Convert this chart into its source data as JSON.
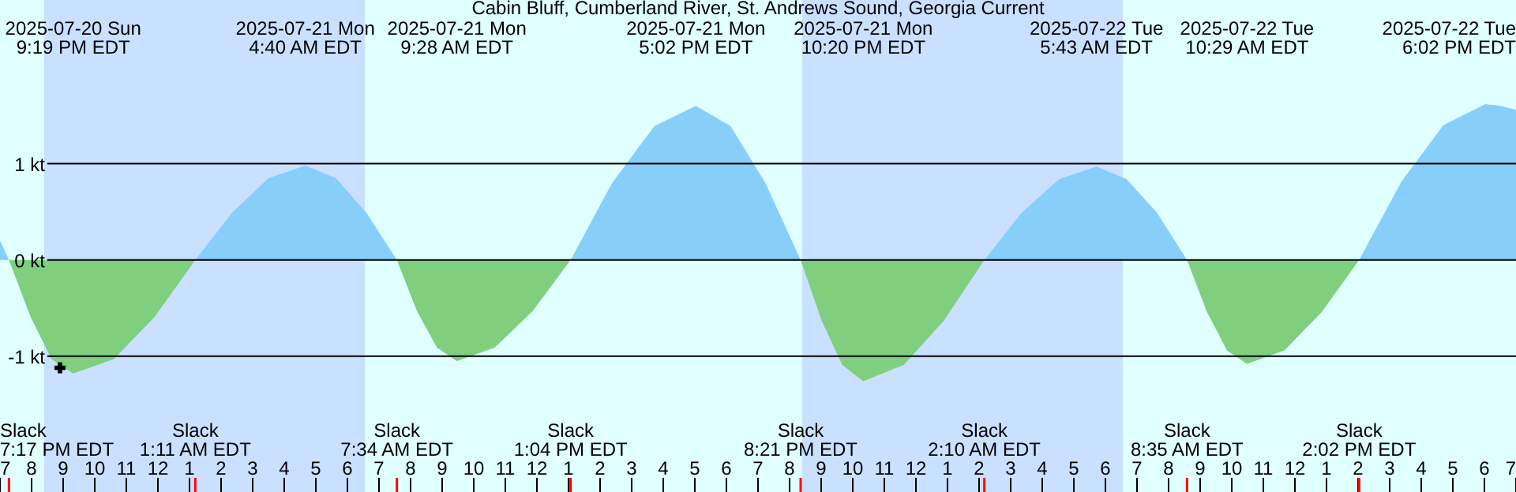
{
  "chart_data": {
    "type": "area",
    "title": "Cabin Bluff, Cumberland River, St. Andrews Sound, Georgia Current",
    "xlim": [
      "2025-07-20T19:00",
      "2025-07-22T19:00"
    ],
    "xticks": [
      {
        "value": "2025-07-20T19:00",
        "label": "7"
      },
      {
        "value": "2025-07-20T20:00",
        "label": "8"
      },
      {
        "value": "2025-07-20T21:00",
        "label": "9"
      },
      {
        "value": "2025-07-20T22:00",
        "label": "10"
      },
      {
        "value": "2025-07-20T23:00",
        "label": "11"
      },
      {
        "value": "2025-07-21T00:00",
        "label": "12"
      },
      {
        "value": "2025-07-21T01:00",
        "label": "1"
      },
      {
        "value": "2025-07-21T02:00",
        "label": "2"
      },
      {
        "value": "2025-07-21T03:00",
        "label": "3"
      },
      {
        "value": "2025-07-21T04:00",
        "label": "4"
      },
      {
        "value": "2025-07-21T05:00",
        "label": "5"
      },
      {
        "value": "2025-07-21T06:00",
        "label": "6"
      },
      {
        "value": "2025-07-21T07:00",
        "label": "7"
      },
      {
        "value": "2025-07-21T08:00",
        "label": "8"
      },
      {
        "value": "2025-07-21T09:00",
        "label": "9"
      },
      {
        "value": "2025-07-21T10:00",
        "label": "10"
      },
      {
        "value": "2025-07-21T11:00",
        "label": "11"
      },
      {
        "value": "2025-07-21T12:00",
        "label": "12"
      },
      {
        "value": "2025-07-21T13:00",
        "label": "1"
      },
      {
        "value": "2025-07-21T14:00",
        "label": "2"
      },
      {
        "value": "2025-07-21T15:00",
        "label": "3"
      },
      {
        "value": "2025-07-21T16:00",
        "label": "4"
      },
      {
        "value": "2025-07-21T17:00",
        "label": "5"
      },
      {
        "value": "2025-07-21T18:00",
        "label": "6"
      },
      {
        "value": "2025-07-21T19:00",
        "label": "7"
      },
      {
        "value": "2025-07-21T20:00",
        "label": "8"
      },
      {
        "value": "2025-07-21T21:00",
        "label": "9"
      },
      {
        "value": "2025-07-21T22:00",
        "label": "10"
      },
      {
        "value": "2025-07-21T23:00",
        "label": "11"
      },
      {
        "value": "2025-07-22T00:00",
        "label": "12"
      },
      {
        "value": "2025-07-22T01:00",
        "label": "1"
      },
      {
        "value": "2025-07-22T02:00",
        "label": "2"
      },
      {
        "value": "2025-07-22T03:00",
        "label": "3"
      },
      {
        "value": "2025-07-22T04:00",
        "label": "4"
      },
      {
        "value": "2025-07-22T05:00",
        "label": "5"
      },
      {
        "value": "2025-07-22T06:00",
        "label": "6"
      },
      {
        "value": "2025-07-22T07:00",
        "label": "7"
      },
      {
        "value": "2025-07-22T08:00",
        "label": "8"
      },
      {
        "value": "2025-07-22T09:00",
        "label": "9"
      },
      {
        "value": "2025-07-22T10:00",
        "label": "10"
      },
      {
        "value": "2025-07-22T11:00",
        "label": "11"
      },
      {
        "value": "2025-07-22T12:00",
        "label": "12"
      },
      {
        "value": "2025-07-22T13:00",
        "label": "1"
      },
      {
        "value": "2025-07-22T14:00",
        "label": "2"
      },
      {
        "value": "2025-07-22T15:00",
        "label": "3"
      },
      {
        "value": "2025-07-22T16:00",
        "label": "4"
      },
      {
        "value": "2025-07-22T17:00",
        "label": "5"
      },
      {
        "value": "2025-07-22T18:00",
        "label": "6"
      },
      {
        "value": "2025-07-22T19:00",
        "label": "7"
      }
    ],
    "ylim": [
      -2.41,
      2.7
    ],
    "yticks": [
      {
        "value": -1,
        "label": "-1 kt"
      },
      {
        "value": 0,
        "label": "0 kt"
      },
      {
        "value": 1,
        "label": "1 kt"
      }
    ],
    "grid": "y",
    "bands": [
      {
        "axis": "x",
        "from": "2025-07-20T20:24",
        "to": "2025-07-21T06:33",
        "color": "#cae0ff"
      },
      {
        "axis": "x",
        "from": "2025-07-21T20:24",
        "to": "2025-07-22T06:33",
        "color": "#cae0ff"
      }
    ],
    "series": [
      {
        "color": "#87cefa",
        "x": [
          "2025-07-20T19:00",
          "2025-07-20T19:17"
        ],
        "values": [
          0.2,
          0
        ]
      },
      {
        "color": "#7fcf7f",
        "x": [
          "2025-07-20T19:17",
          "2025-07-20T19:58",
          "2025-07-20T20:38",
          "2025-07-20T21:19",
          "2025-07-20T22:36",
          "2025-07-20T23:54",
          "2025-07-21T01:11"
        ],
        "values": [
          0,
          -0.59,
          -1.03,
          -1.18,
          -1.03,
          -0.59,
          0
        ]
      },
      {
        "color": "#87cefa",
        "x": [
          "2025-07-21T01:11",
          "2025-07-21T02:21",
          "2025-07-21T03:30",
          "2025-07-21T04:40",
          "2025-07-21T05:38",
          "2025-07-21T06:36",
          "2025-07-21T07:34"
        ],
        "values": [
          0,
          0.49,
          0.85,
          0.98,
          0.85,
          0.49,
          0
        ]
      },
      {
        "color": "#7fcf7f",
        "x": [
          "2025-07-21T07:34",
          "2025-07-21T08:12",
          "2025-07-21T08:50",
          "2025-07-21T09:28",
          "2025-07-21T10:40",
          "2025-07-21T11:52",
          "2025-07-21T13:04"
        ],
        "values": [
          0,
          -0.53,
          -0.91,
          -1.05,
          -0.91,
          -0.53,
          0
        ]
      },
      {
        "color": "#87cefa",
        "x": [
          "2025-07-21T13:04",
          "2025-07-21T14:23",
          "2025-07-21T15:43",
          "2025-07-21T17:02",
          "2025-07-21T18:08",
          "2025-07-21T19:14",
          "2025-07-21T20:21"
        ],
        "values": [
          0,
          0.8,
          1.39,
          1.6,
          1.39,
          0.8,
          0
        ]
      },
      {
        "color": "#7fcf7f",
        "x": [
          "2025-07-21T20:21",
          "2025-07-21T21:01",
          "2025-07-21T21:40",
          "2025-07-21T22:20",
          "2025-07-21T23:37",
          "2025-07-22T00:53",
          "2025-07-22T02:10"
        ],
        "values": [
          0,
          -0.63,
          -1.09,
          -1.26,
          -1.09,
          -0.63,
          0
        ]
      },
      {
        "color": "#87cefa",
        "x": [
          "2025-07-22T02:10",
          "2025-07-22T03:21",
          "2025-07-22T04:32",
          "2025-07-22T05:43",
          "2025-07-22T06:40",
          "2025-07-22T07:38",
          "2025-07-22T08:35"
        ],
        "values": [
          0,
          0.49,
          0.84,
          0.97,
          0.84,
          0.49,
          0
        ]
      },
      {
        "color": "#7fcf7f",
        "x": [
          "2025-07-22T08:35",
          "2025-07-22T09:13",
          "2025-07-22T09:51",
          "2025-07-22T10:29",
          "2025-07-22T11:40",
          "2025-07-22T12:51",
          "2025-07-22T14:02"
        ],
        "values": [
          0,
          -0.54,
          -0.94,
          -1.08,
          -0.94,
          -0.54,
          0
        ]
      },
      {
        "color": "#87cefa",
        "x": [
          "2025-07-22T14:02",
          "2025-07-22T15:22",
          "2025-07-22T16:42",
          "2025-07-22T18:02",
          "2025-07-22T18:30",
          "2025-07-22T19:00"
        ],
        "values": [
          0,
          0.81,
          1.4,
          1.62,
          1.6,
          1.56
        ]
      },
      {
        "type": "scatter",
        "marker": "cross",
        "color": "#000000",
        "x": [
          "2025-07-20T20:54"
        ],
        "values": [
          -1.12
        ]
      }
    ],
    "annotations": [
      "2025-07-20 Sun\n9:19 PM EDT",
      "2025-07-21 Mon\n4:40 AM EDT",
      "2025-07-21 Mon\n9:28 AM EDT",
      "2025-07-21 Mon\n5:02 PM EDT",
      "2025-07-21 Mon\n10:20 PM EDT",
      "2025-07-22 Tue\n5:43 AM EDT",
      "2025-07-22 Tue\n10:29 AM EDT",
      "2025-07-22 Tue\n6:02 PM EDT",
      "Slack\n7:17 PM EDT",
      "Slack\n1:11 AM EDT",
      "Slack\n7:34 AM EDT",
      "Slack\n1:04 PM EDT",
      "Slack\n8:21 PM EDT",
      "Slack\n2:10 AM EDT",
      "Slack\n8:35 AM EDT",
      "Slack\n2:02 PM EDT"
    ]
  }
}
